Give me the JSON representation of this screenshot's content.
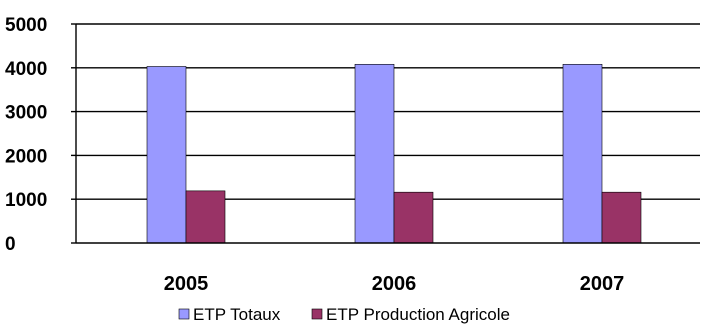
{
  "chart_data": {
    "type": "bar",
    "categories": [
      "2005",
      "2006",
      "2007"
    ],
    "series": [
      {
        "name": "ETP Totaux",
        "values": [
          4030,
          4080,
          4080
        ],
        "color": "#9999ff"
      },
      {
        "name": "ETP Production  Agricole",
        "values": [
          1190,
          1160,
          1160
        ],
        "color": "#993366"
      }
    ],
    "ylim": [
      0,
      5000
    ],
    "yticks": [
      0,
      1000,
      2000,
      3000,
      4000,
      5000
    ],
    "grid": true,
    "legend_position": "bottom",
    "title": "",
    "xlabel": "",
    "ylabel": ""
  }
}
